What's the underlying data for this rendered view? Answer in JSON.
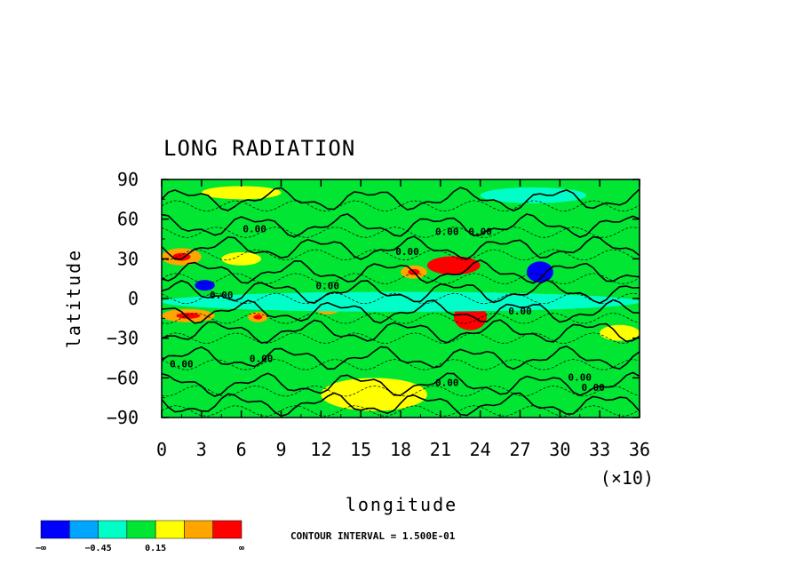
{
  "chart_data": {
    "type": "heatmap",
    "title": "LONG RADIATION",
    "xlabel": "longitude",
    "ylabel": "latitude",
    "x_multiplier_label": "(×10)",
    "x_ticks": [
      "0",
      "3",
      "6",
      "9",
      "12",
      "15",
      "18",
      "21",
      "24",
      "27",
      "30",
      "33",
      "36"
    ],
    "y_ticks": [
      "90",
      "60",
      "30",
      "0",
      "−30",
      "−60",
      "−90"
    ],
    "xlim": [
      0,
      36
    ],
    "ylim": [
      -90,
      90
    ],
    "contour_interval_label": "CONTOUR INTERVAL = 1.500E-01",
    "contour_labels": [
      "0.00",
      "0.00",
      "0.00",
      "0.00",
      "0.00",
      "0.00",
      "0.00",
      "0.00",
      "0.00",
      "0.00",
      "0.00",
      "0.00"
    ],
    "colorbar": {
      "colors": [
        "#0000ff",
        "#00a5ff",
        "#00ffc8",
        "#00e632",
        "#ffff00",
        "#ffa500",
        "#ff0000"
      ],
      "tick_labels": [
        "−∞",
        "−0.45",
        "0.15",
        "∞"
      ]
    },
    "regions": [
      {
        "x": [
          3,
          9
        ],
        "y": [
          75,
          85
        ],
        "level": 0.2
      },
      {
        "x": [
          24,
          32
        ],
        "y": [
          72,
          84
        ],
        "level": -0.3
      },
      {
        "x": [
          0,
          3
        ],
        "y": [
          25,
          38
        ],
        "level": 0.5
      },
      {
        "x": [
          4.5,
          7.5
        ],
        "y": [
          25,
          35
        ],
        "level": 0.4
      },
      {
        "x": [
          0,
          4
        ],
        "y": [
          -18,
          -8
        ],
        "level": 0.6
      },
      {
        "x": [
          6.5,
          8
        ],
        "y": [
          -18,
          -10
        ],
        "level": 0.5
      },
      {
        "x": [
          2.5,
          4
        ],
        "y": [
          6,
          14
        ],
        "level": -0.8
      },
      {
        "x": [
          20,
          24
        ],
        "y": [
          18,
          32
        ],
        "level": 1.0
      },
      {
        "x": [
          22,
          24.5
        ],
        "y": [
          -24,
          -4
        ],
        "level": 1.0
      },
      {
        "x": [
          18,
          20
        ],
        "y": [
          15,
          25
        ],
        "level": 0.6
      },
      {
        "x": [
          11.5,
          13.5
        ],
        "y": [
          -12,
          -2
        ],
        "level": 0.5
      },
      {
        "x": [
          27.5,
          29.5
        ],
        "y": [
          12,
          28
        ],
        "level": -0.9
      },
      {
        "x": [
          33,
          36
        ],
        "y": [
          -32,
          -20
        ],
        "level": 0.4
      },
      {
        "x": [
          12,
          20
        ],
        "y": [
          -85,
          -60
        ],
        "level": 0.2
      },
      {
        "x": [
          0,
          36
        ],
        "y": [
          -10,
          5
        ],
        "level": -0.3
      }
    ]
  }
}
